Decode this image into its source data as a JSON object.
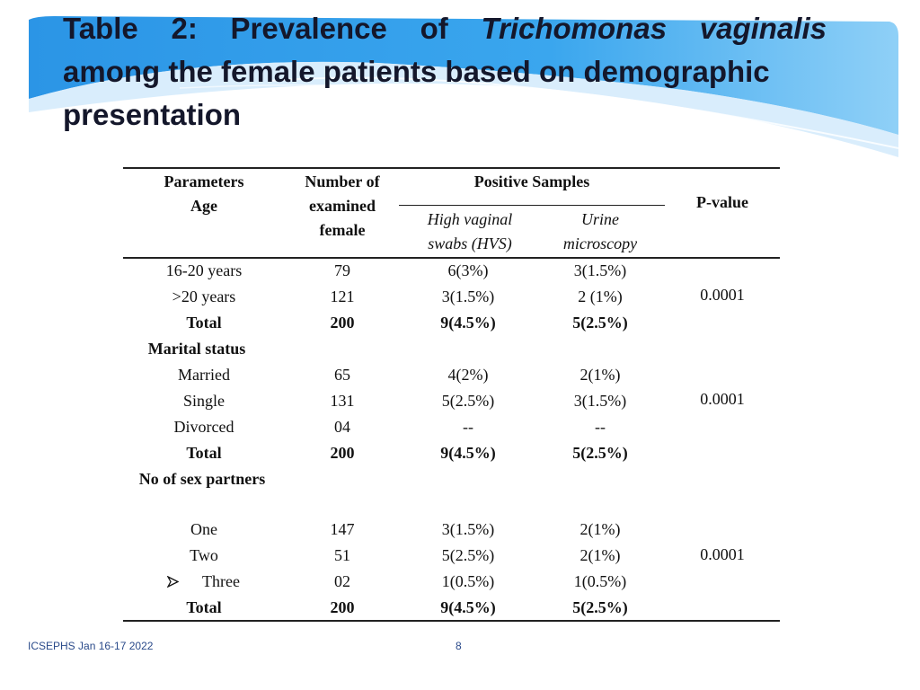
{
  "title": {
    "w1": "Table",
    "w2": "2:",
    "w3": "Prevalence",
    "w4": "of",
    "w5": "Trichomonas",
    "w6": "vaginalis",
    "line2": "among the female patients based on  demographic",
    "line3": "presentation"
  },
  "colors": {
    "banner_blue": "#1a8fe0",
    "title_text": "#14172b",
    "footer_text": "#2a4a8a"
  },
  "header": {
    "parameters": "Parameters",
    "age": "Age",
    "number_l1": "Number of",
    "number_l2": "examined",
    "number_l3": "female",
    "positive_samples": "Positive Samples",
    "hvs_l1": "High vaginal",
    "hvs_l2": "swabs (HVS)",
    "urine_l1": "Urine",
    "urine_l2": "microscopy",
    "pvalue": "P-value"
  },
  "age": {
    "rows": [
      {
        "param": "16-20 years",
        "number": "79",
        "hvs": "6(3%)",
        "urine": "3(1.5%)"
      },
      {
        "param": ">20 years",
        "number": "121",
        "hvs": "3(1.5%)",
        "urine": "2 (1%)"
      },
      {
        "param": "Total",
        "number": "200",
        "hvs": "9(4.5%)",
        "urine": "5(2.5%)"
      }
    ],
    "pvalue": "0.0001"
  },
  "marital": {
    "heading": "Marital status",
    "rows": [
      {
        "param": "Married",
        "number": "65",
        "hvs": "4(2%)",
        "urine": "2(1%)"
      },
      {
        "param": "Single",
        "number": "131",
        "hvs": "5(2.5%)",
        "urine": "3(1.5%)"
      },
      {
        "param": "Divorced",
        "number": "04",
        "hvs": "--",
        "urine": "--"
      },
      {
        "param": "Total",
        "number": "200",
        "hvs": "9(4.5%)",
        "urine": "5(2.5%)"
      }
    ],
    "pvalue": "0.0001"
  },
  "partners": {
    "heading": "No of sex  partners",
    "rows": [
      {
        "param": "One",
        "number": "147",
        "hvs": "3(1.5%)",
        "urine": "2(1%)"
      },
      {
        "param": "Two",
        "number": "51",
        "hvs": "5(2.5%)",
        "urine": "2(1%)"
      },
      {
        "param": "Three",
        "number": "02",
        "hvs": "1(0.5%)",
        "urine": "1(0.5%)"
      },
      {
        "param": "Total",
        "number": "200",
        "hvs": "9(4.5%)",
        "urine": "5(2.5%)"
      }
    ],
    "pvalue": "0.0001",
    "bullet_icon": "arrow-bullet-icon"
  },
  "footer": {
    "conference": "ICSEPHS Jan 16-17 2022",
    "page": "8"
  }
}
